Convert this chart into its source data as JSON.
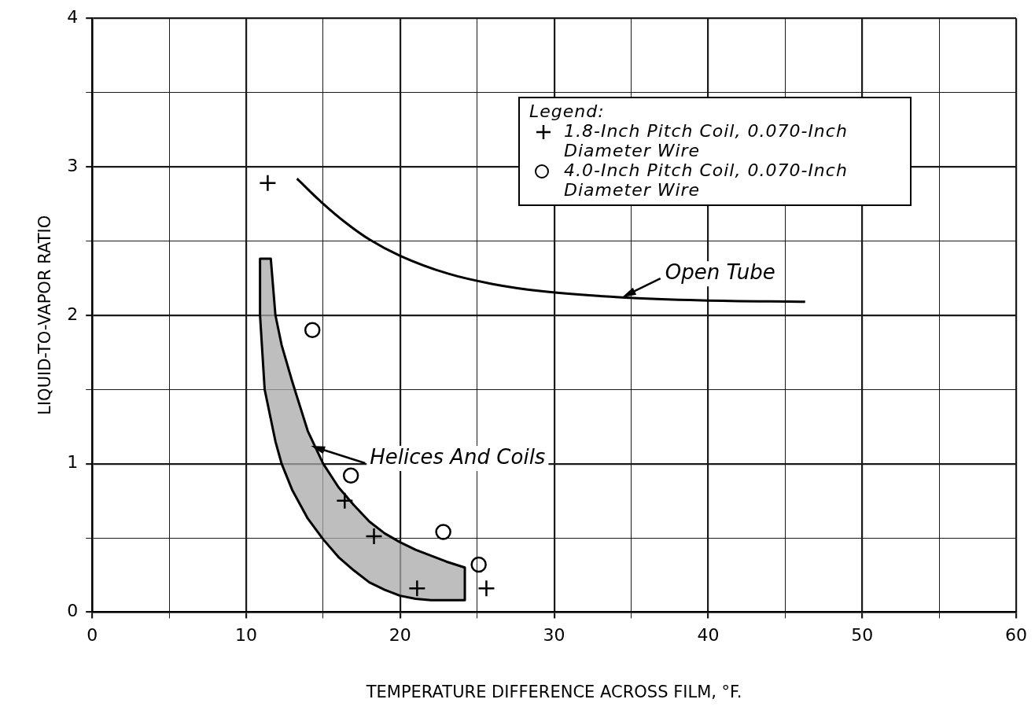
{
  "chart_data": {
    "type": "scatter",
    "xlabel": "TEMPERATURE DIFFERENCE ACROSS FILM, °F.",
    "ylabel": "LIQUID-TO-VAPOR RATIO",
    "legend_title": "Legend:",
    "legend": "top right",
    "grid": true,
    "xlim": [
      0,
      60
    ],
    "xticks": [
      0,
      {
        "value": 5,
        "label": null
      },
      10,
      {
        "value": 15,
        "label": null
      },
      20,
      {
        "value": 25,
        "label": null
      },
      30,
      {
        "value": 35,
        "label": null
      },
      40,
      {
        "value": 45,
        "label": null
      },
      50,
      {
        "value": 55,
        "label": null
      },
      60
    ],
    "ylim": [
      0,
      4
    ],
    "yticks": [
      0,
      {
        "value": 0.5,
        "label": null
      },
      1,
      {
        "value": 1.5,
        "label": null
      },
      2,
      {
        "value": 2.5,
        "label": null
      },
      3,
      {
        "value": 3.5,
        "label": null
      },
      4
    ],
    "series": [
      {
        "name": "1.8-Inch Pitch Coil, 0.070-Inch Diameter Wire",
        "marker": "cross",
        "color": "#000000",
        "x": [
          11.4,
          16.4,
          18.3,
          21.1,
          25.6
        ],
        "values": [
          2.89,
          0.75,
          0.51,
          0.16,
          0.16
        ]
      },
      {
        "name": "4.0-Inch Pitch Coil, 0.070-Inch Diameter Wire",
        "marker": "circle",
        "color": "#000000",
        "x": [
          14.3,
          16.8,
          22.8,
          25.1
        ],
        "values": [
          1.9,
          0.92,
          0.54,
          0.32
        ]
      },
      {
        "type": "line",
        "color": "#000000",
        "x": [
          13.3,
          14.9,
          16.5,
          18,
          20,
          23.1,
          26,
          29.3,
          34.4,
          39.6,
          46.3
        ],
        "values": [
          2.92,
          2.76,
          2.62,
          2.51,
          2.4,
          2.28,
          2.21,
          2.16,
          2.12,
          2.1,
          2.09
        ]
      },
      {
        "type": "area",
        "color": "#a8a8a8",
        "x": [
          10.9,
          11.2,
          11.6,
          11.9,
          12.3,
          13,
          14,
          15,
          16,
          17,
          18,
          19,
          20,
          21,
          22,
          23,
          24.2
        ],
        "lower": [
          2.0,
          1.5,
          1.3,
          1.15,
          1.0,
          0.82,
          0.63,
          0.49,
          0.37,
          0.28,
          0.2,
          0.15,
          0.11,
          0.09,
          0.08,
          0.08,
          0.08
        ],
        "values": [
          null,
          null,
          null,
          null,
          null,
          null,
          null,
          null,
          null,
          null,
          null,
          null,
          null,
          null,
          null,
          null,
          null
        ],
        "upper": [
          2.38,
          2.38,
          2.38,
          2.0,
          1.8,
          1.55,
          1.22,
          1.0,
          0.84,
          0.72,
          0.61,
          0.53,
          0.47,
          0.42,
          0.38,
          0.34,
          0.3
        ]
      }
    ],
    "annotations": [
      {
        "text": "Open Tube",
        "x": 34.4,
        "y": 2.12
      },
      {
        "text": "Helices And Coils",
        "x": 14.2,
        "y": 1.12
      }
    ]
  }
}
